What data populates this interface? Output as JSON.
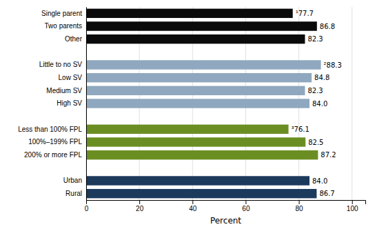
{
  "chart_data": {
    "type": "bar",
    "orientation": "horizontal",
    "categories": [
      "Rural",
      "Urban",
      null,
      "200% or more FPL",
      "100%–199% FPL",
      "Less than 100% FPL",
      null,
      "High SV",
      "Medium SV",
      "Low SV",
      "Little to no SV",
      null,
      "Other",
      "Two parents",
      "Single parent"
    ],
    "values": [
      86.7,
      84.0,
      null,
      87.2,
      82.5,
      76.1,
      null,
      84.0,
      82.3,
      84.8,
      88.3,
      null,
      82.3,
      86.8,
      77.7
    ],
    "value_labels": [
      "86.7",
      "84.0",
      null,
      "87.2",
      "82.5",
      "³76.1",
      null,
      "84.0",
      "82.3",
      "84.8",
      "²88.3",
      null,
      "82.3",
      "86.8",
      "¹77.7"
    ],
    "colors": [
      "#1b3a5c",
      "#1b3a5c",
      null,
      "#6b8e23",
      "#6b8e23",
      "#6b8e23",
      null,
      "#8fa8bf",
      "#8fa8bf",
      "#8fa8bf",
      "#8fa8bf",
      null,
      "#0a0a0a",
      "#0a0a0a",
      "#0a0a0a"
    ],
    "xlabel": "Percent",
    "xlim": [
      0,
      105
    ],
    "xticks": [
      0,
      20,
      40,
      60,
      80,
      100
    ],
    "grid": true,
    "data_labels": true
  }
}
